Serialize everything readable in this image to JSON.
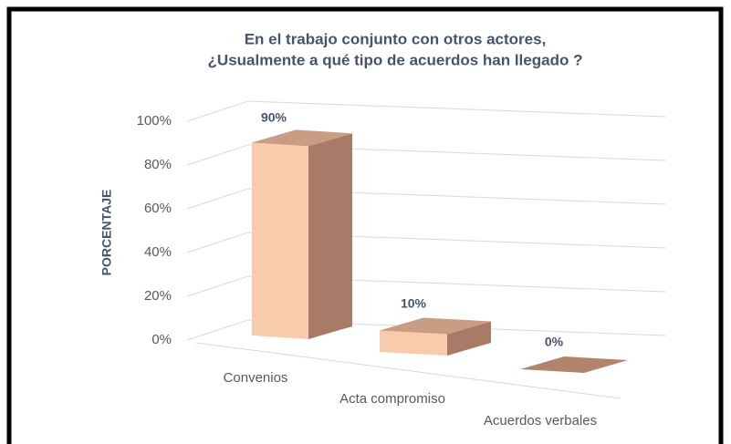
{
  "chart_data": {
    "type": "bar3d",
    "title": [
      "En el trabajo conjunto con otros actores,",
      "¿Usualmente a qué tipo de acuerdos han llegado ?"
    ],
    "ylabel": "PORCENTAJE",
    "categories": [
      "Convenios",
      "Acta compromiso",
      "Acuerdos verbales"
    ],
    "values": [
      90,
      10,
      0
    ],
    "value_labels": [
      "90%",
      "10%",
      "0%"
    ],
    "color": "#f8cbad",
    "ylim": [
      0,
      100
    ],
    "yticks": [
      {
        "value": 0,
        "label": "0%"
      },
      {
        "value": 20,
        "label": "20%"
      },
      {
        "value": 40,
        "label": "40%"
      },
      {
        "value": 60,
        "label": "60%"
      },
      {
        "value": 80,
        "label": "80%"
      },
      {
        "value": 100,
        "label": "100%"
      }
    ],
    "grid": true
  }
}
